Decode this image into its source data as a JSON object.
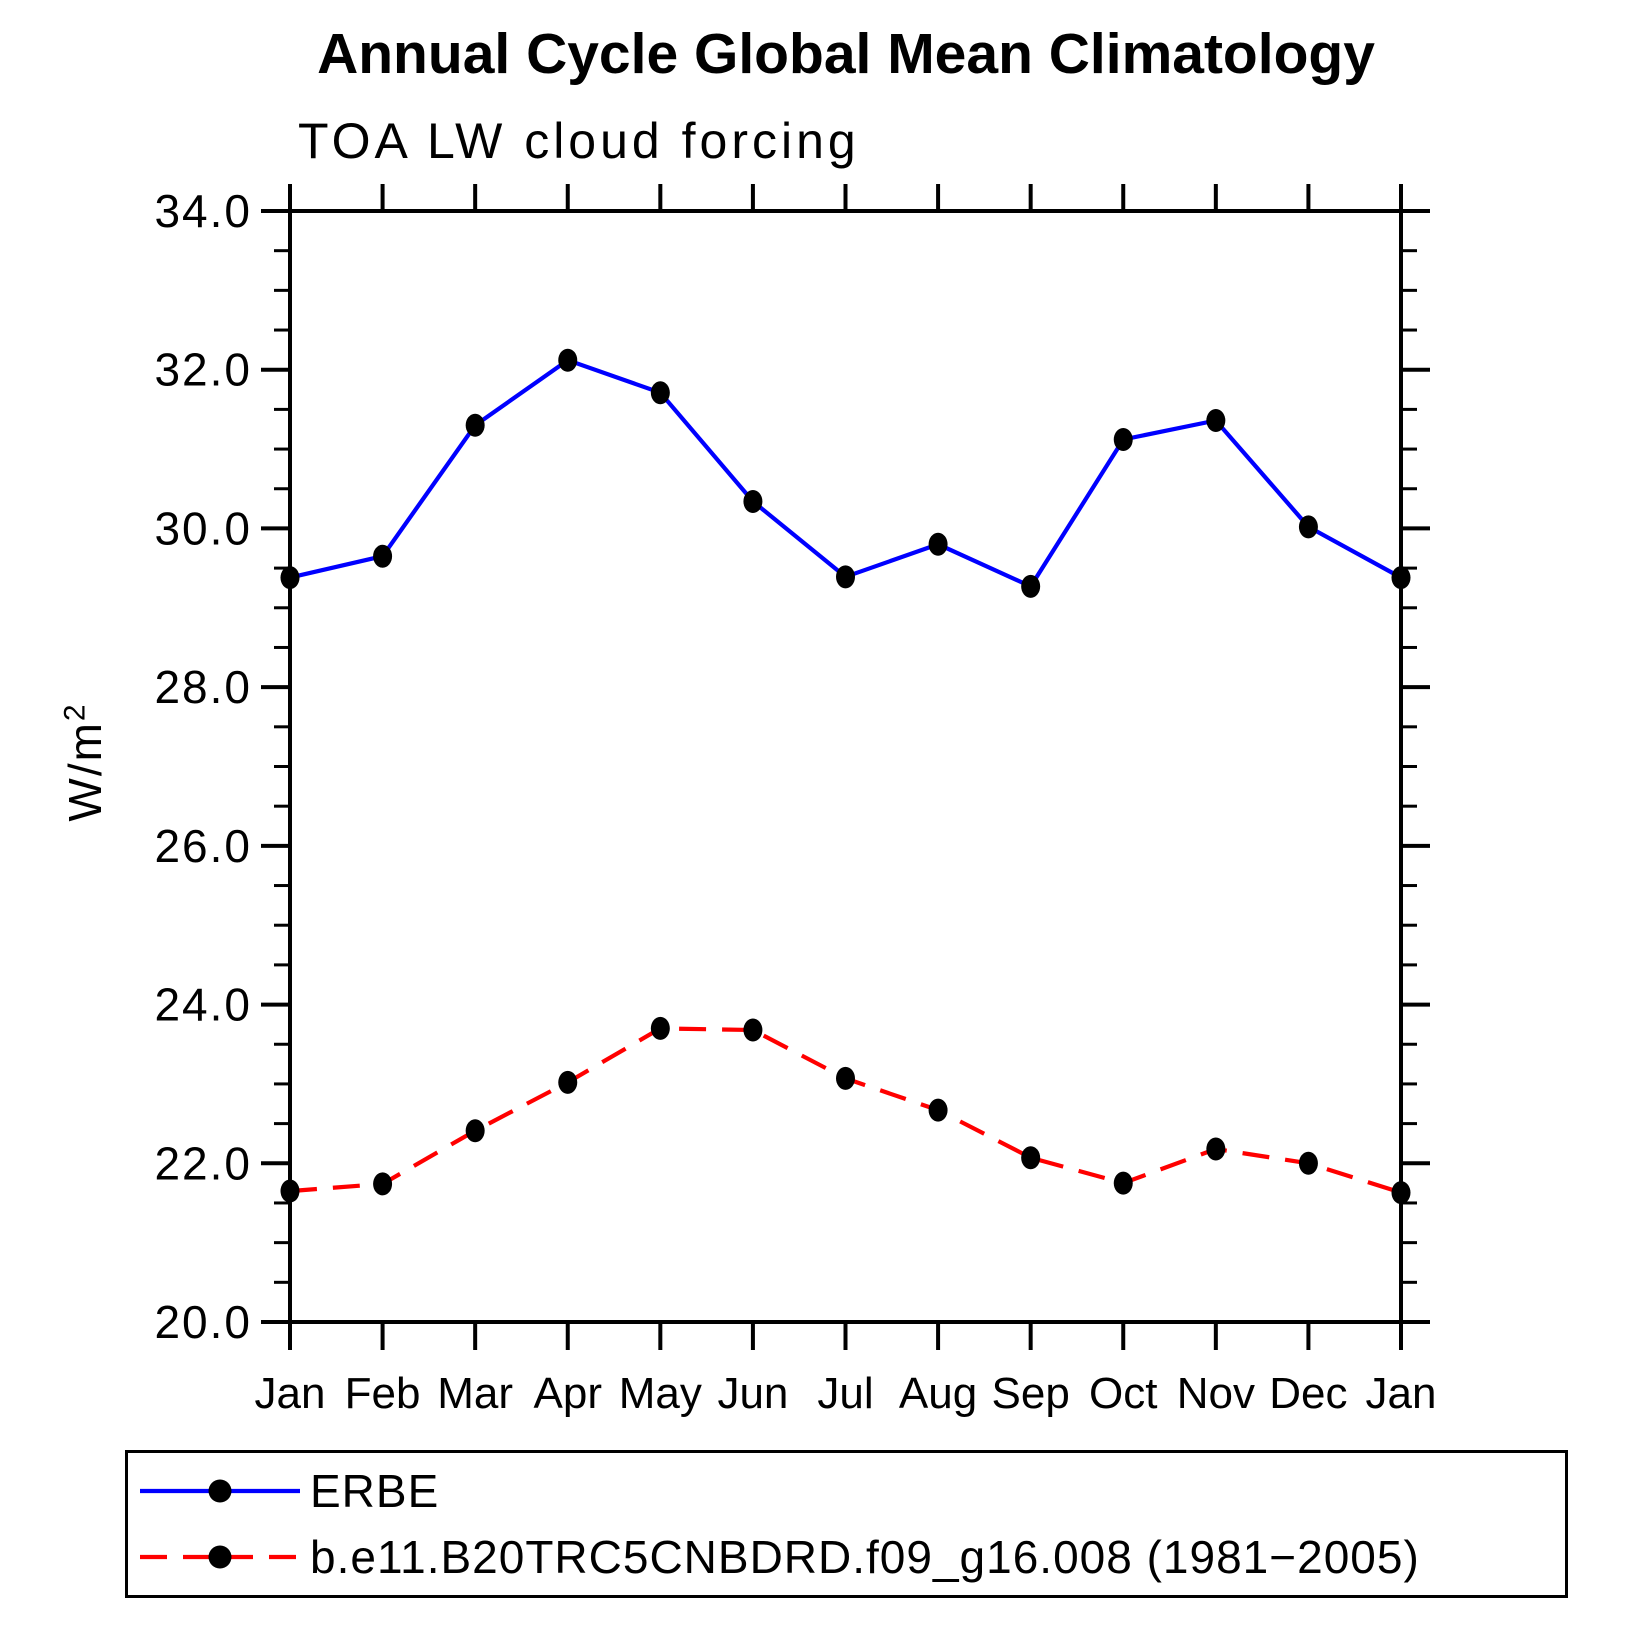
{
  "header": {
    "title": "Annual Cycle Global Mean Climatology",
    "subtitle": "TOA LW cloud forcing"
  },
  "y_axis": {
    "label_base": "W/m",
    "label_exponent": "2",
    "tick_labels": [
      "34.0",
      "32.0",
      "30.0",
      "28.0",
      "26.0",
      "24.0",
      "22.0",
      "20.0"
    ]
  },
  "x_axis": {
    "tick_labels": [
      "Jan",
      "Feb",
      "Mar",
      "Apr",
      "May",
      "Jun",
      "Jul",
      "Aug",
      "Sep",
      "Oct",
      "Nov",
      "Dec",
      "Jan"
    ]
  },
  "colors": {
    "erbe_line": "#0000ff",
    "model_line": "#ff0000",
    "marker": "#000000",
    "axis": "#000000"
  },
  "chart_data": {
    "type": "line",
    "title": "Annual Cycle Global Mean Climatology",
    "subtitle": "TOA LW cloud forcing",
    "xlabel": "",
    "ylabel": "W/m²",
    "categories": [
      "Jan",
      "Feb",
      "Mar",
      "Apr",
      "May",
      "Jun",
      "Jul",
      "Aug",
      "Sep",
      "Oct",
      "Nov",
      "Dec",
      "Jan"
    ],
    "ylim": [
      20.0,
      34.0
    ],
    "ytick_major_interval": 2.0,
    "ytick_minor_interval": 0.5,
    "grid": false,
    "legend_position": "bottom-left-box",
    "series": [
      {
        "name": "ERBE",
        "color": "#0000ff",
        "line_style": "solid",
        "marker": "filled-black-circle",
        "values": [
          29.38,
          29.65,
          31.3,
          32.12,
          31.71,
          30.34,
          29.39,
          29.8,
          29.27,
          31.12,
          31.36,
          30.02,
          29.38
        ]
      },
      {
        "name": "b.e11.B20TRC5CNBDRD.f09_g16.008 (1981−2005)",
        "color": "#ff0000",
        "line_style": "dashed",
        "marker": "filled-black-circle",
        "values": [
          21.65,
          21.74,
          22.41,
          23.02,
          23.7,
          23.68,
          23.07,
          22.67,
          22.07,
          21.75,
          22.18,
          22.0,
          21.63
        ]
      }
    ]
  }
}
